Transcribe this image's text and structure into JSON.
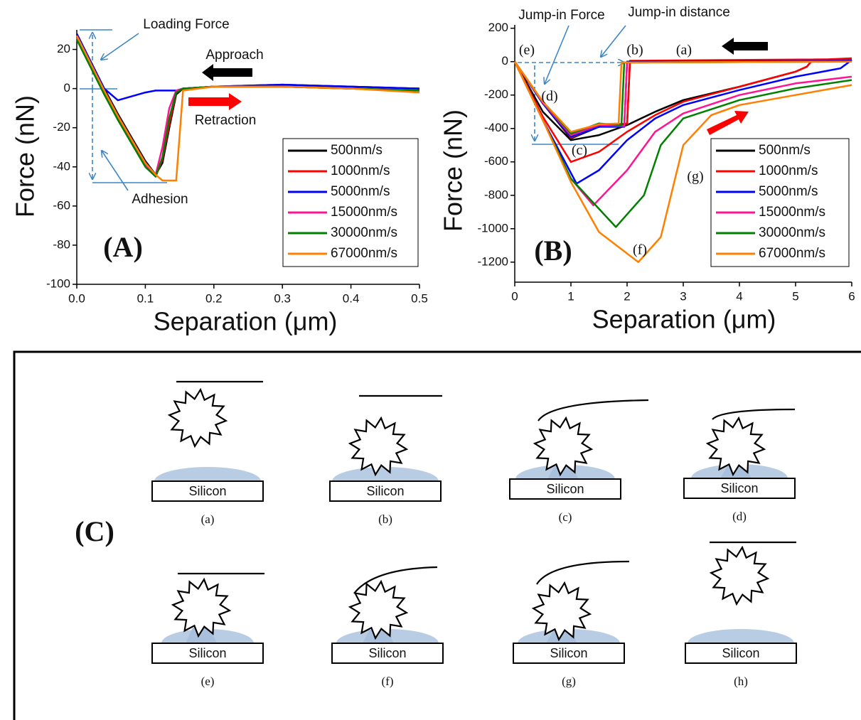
{
  "chart_data": [
    {
      "type": "line",
      "label": "(A)",
      "xlabel": "Separation (μm)",
      "ylabel": "Force (nN)",
      "xlim": [
        0,
        0.5
      ],
      "ylim": [
        -100,
        30
      ],
      "xticks": [
        {
          "value": 0,
          "label": "0.0"
        },
        0.1,
        0.2,
        0.3,
        0.4,
        0.5
      ],
      "yticks": [
        -100,
        -80,
        -60,
        -40,
        -20,
        0,
        20
      ],
      "annotations": [
        "Loading Force",
        "Approach",
        "Retraction",
        "Adhesion"
      ],
      "x": [
        0,
        0.02,
        0.04,
        0.06,
        0.08,
        0.1,
        0.115,
        0.125,
        0.135,
        0.145,
        0.155,
        0.2,
        0.3,
        0.4,
        0.5
      ],
      "series": [
        {
          "name": "500nm/s",
          "color": "#000000",
          "values": [
            28,
            14,
            0,
            -13,
            -25,
            -37,
            -44,
            -38,
            -20,
            -3,
            0,
            1,
            2,
            1,
            0
          ]
        },
        {
          "name": "1000nm/s",
          "color": "#ff0000",
          "values": [
            27,
            13,
            -1,
            -14,
            -26,
            -38,
            -45,
            -36,
            -18,
            -2,
            0,
            1,
            1,
            0,
            -1
          ]
        },
        {
          "name": "5000nm/s",
          "color": "#0000ff",
          "values": [
            28,
            14,
            0,
            -6,
            -4,
            -2,
            -1,
            -1,
            -1,
            -1,
            0,
            1,
            2,
            1,
            0
          ]
        },
        {
          "name": "15000nm/s",
          "color": "#ff1493",
          "values": [
            26,
            12,
            -2,
            -15,
            -27,
            -39,
            -44,
            -30,
            -10,
            -1,
            0,
            1,
            1,
            0,
            -1
          ]
        },
        {
          "name": "30000nm/s",
          "color": "#008000",
          "values": [
            25,
            11,
            -3,
            -16,
            -28,
            -40,
            -45,
            -35,
            -15,
            -2,
            0,
            1,
            1,
            0,
            -1
          ]
        },
        {
          "name": "67000nm/s",
          "color": "#ff8000",
          "values": [
            27,
            13,
            -1,
            -14,
            -26,
            -38,
            -44,
            -47,
            -47,
            -47,
            -1,
            1,
            1,
            0,
            -2
          ]
        }
      ]
    },
    {
      "type": "line",
      "label": "(B)",
      "xlabel": "Separation (μm)",
      "ylabel": "Force (nN)",
      "xlim": [
        0,
        6
      ],
      "ylim": [
        -1320,
        220
      ],
      "xticks": [
        0,
        1,
        2,
        3,
        4,
        5,
        6
      ],
      "yticks": [
        -1200,
        -1000,
        -800,
        -600,
        -400,
        -200,
        0,
        200
      ],
      "annotations": [
        "Jump-in Force",
        "Jump-in distance",
        "(a)",
        "(b)",
        "(c)",
        "(d)",
        "(e)",
        "(f)",
        "(g)"
      ],
      "series": [
        {
          "name": "500nm/s",
          "color": "#000000",
          "x": [
            0,
            0.5,
            1.0,
            1.5,
            2,
            2.5,
            3,
            4,
            5,
            5.2,
            5.3,
            6,
            null,
            6,
            2.05,
            2.0,
            1.5,
            1.0,
            0.5,
            0
          ],
          "values": [
            0,
            -300,
            -470,
            -440,
            -380,
            -300,
            -230,
            -150,
            -60,
            -30,
            10,
            10,
            null,
            10,
            0,
            -380,
            -390,
            -460,
            -250,
            0
          ]
        },
        {
          "name": "1000nm/s",
          "color": "#ff0000",
          "x": [
            0,
            0.5,
            1.0,
            1.5,
            2,
            2.5,
            3,
            4,
            5,
            5.2,
            5.3,
            6,
            null,
            6,
            2.05,
            2.0,
            1.5,
            1.0,
            0.5,
            0
          ],
          "values": [
            0,
            -330,
            -600,
            -540,
            -420,
            -320,
            -240,
            -150,
            -60,
            -30,
            10,
            20,
            null,
            15,
            5,
            -370,
            -385,
            -455,
            -245,
            0
          ]
        },
        {
          "name": "5000nm/s",
          "color": "#0000ff",
          "x": [
            0,
            0.5,
            1.1,
            1.5,
            2,
            2.5,
            3,
            4,
            5,
            5.8,
            6,
            null,
            6,
            2.0,
            1.95,
            1.5,
            1.0,
            0.5,
            0
          ],
          "values": [
            0,
            -350,
            -730,
            -650,
            -470,
            -340,
            -260,
            -170,
            -90,
            -40,
            10,
            null,
            5,
            0,
            -390,
            -390,
            -450,
            -250,
            0
          ]
        },
        {
          "name": "15000nm/s",
          "color": "#ff1493",
          "x": [
            0,
            0.5,
            1,
            1.4,
            2,
            2.5,
            3,
            4,
            5,
            6,
            null,
            6,
            2.0,
            1.95,
            1.5,
            1.0,
            0.5,
            0
          ],
          "values": [
            0,
            -350,
            -700,
            -860,
            -650,
            -420,
            -310,
            -200,
            -130,
            -90,
            null,
            0,
            -5,
            -385,
            -380,
            -440,
            -245,
            0
          ]
        },
        {
          "name": "30000nm/s",
          "color": "#008000",
          "x": [
            0,
            0.5,
            1,
            1.8,
            2.3,
            2.6,
            3,
            4,
            5,
            6,
            null,
            6,
            1.95,
            1.9,
            1.5,
            1.0,
            0.5,
            0
          ],
          "values": [
            0,
            -350,
            -700,
            -990,
            -800,
            -500,
            -340,
            -230,
            -160,
            -110,
            null,
            0,
            -5,
            -380,
            -370,
            -430,
            -240,
            0
          ]
        },
        {
          "name": "67000nm/s",
          "color": "#ff8000",
          "x": [
            0,
            0.5,
            1,
            1.5,
            2.2,
            2.6,
            3,
            3.5,
            4,
            5,
            6,
            null,
            6,
            1.9,
            1.85,
            1.5,
            1.0,
            0.5,
            0
          ],
          "values": [
            0,
            -350,
            -720,
            -1020,
            -1200,
            -1050,
            -500,
            -320,
            -260,
            -200,
            -140,
            null,
            0,
            -5,
            -370,
            -375,
            -420,
            -240,
            0
          ]
        }
      ]
    }
  ],
  "diagram": {
    "label": "(C)",
    "panels": [
      {
        "substrate": "Silicon",
        "label": "(a)"
      },
      {
        "substrate": "Silicon",
        "label": "(b)"
      },
      {
        "substrate": "Silicon",
        "label": "(c)"
      },
      {
        "substrate": "Silicon",
        "label": "(d)"
      },
      {
        "substrate": "Silicon",
        "label": "(e)"
      },
      {
        "substrate": "Silicon",
        "label": "(f)"
      },
      {
        "substrate": "Silicon",
        "label": "(g)"
      },
      {
        "substrate": "Silicon",
        "label": "(h)"
      }
    ]
  }
}
